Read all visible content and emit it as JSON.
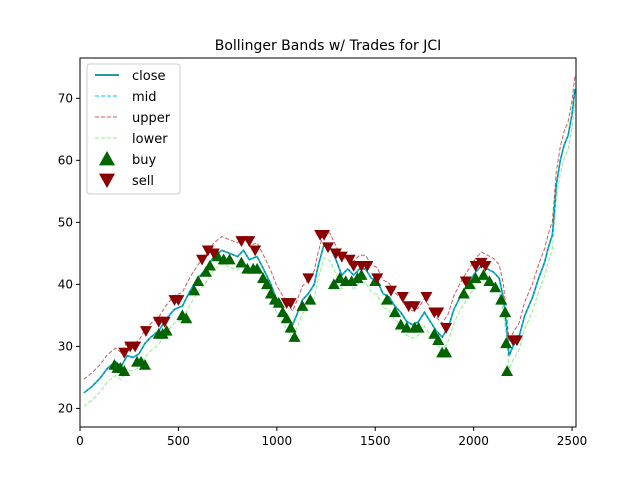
{
  "chart_data": {
    "type": "line",
    "title": "Bollinger Bands w/ Trades for JCI",
    "xlabel": "",
    "ylabel": "",
    "xlim": [
      0,
      2520
    ],
    "ylim": [
      17,
      76.5
    ],
    "xticks": [
      0,
      500,
      1000,
      1500,
      2000,
      2500
    ],
    "yticks": [
      20,
      30,
      40,
      50,
      60,
      70
    ],
    "grid": false,
    "legend": "top-left",
    "legend_entries": [
      "close",
      "mid",
      "upper",
      "lower",
      "buy",
      "sell"
    ],
    "colors": {
      "close": "#008b8b",
      "mid": "#00bfff",
      "upper": "#cd5c5c",
      "lower": "#90ee90",
      "buy": "#006400",
      "sell": "#8b0000"
    },
    "series": [
      {
        "name": "close",
        "points": [
          [
            20,
            22.5
          ],
          [
            60,
            23.5
          ],
          [
            100,
            24.8
          ],
          [
            140,
            26.5
          ],
          [
            180,
            27.5
          ],
          [
            210,
            26.8
          ],
          [
            240,
            28.5
          ],
          [
            270,
            28.2
          ],
          [
            300,
            28.8
          ],
          [
            330,
            30.5
          ],
          [
            360,
            31.5
          ],
          [
            400,
            32.5
          ],
          [
            440,
            34.5
          ],
          [
            480,
            36.0
          ],
          [
            520,
            36.5
          ],
          [
            560,
            39.0
          ],
          [
            600,
            41.0
          ],
          [
            640,
            42.5
          ],
          [
            680,
            44.5
          ],
          [
            720,
            45.5
          ],
          [
            760,
            45.0
          ],
          [
            800,
            44.5
          ],
          [
            830,
            45.5
          ],
          [
            860,
            44.0
          ],
          [
            900,
            44.5
          ],
          [
            940,
            42.0
          ],
          [
            970,
            40.0
          ],
          [
            1000,
            37.5
          ],
          [
            1030,
            36.0
          ],
          [
            1060,
            34.5
          ],
          [
            1080,
            33.5
          ],
          [
            1100,
            35.0
          ],
          [
            1130,
            37.5
          ],
          [
            1160,
            38.5
          ],
          [
            1190,
            40.0
          ],
          [
            1210,
            43.0
          ],
          [
            1240,
            46.5
          ],
          [
            1270,
            46.0
          ],
          [
            1300,
            44.0
          ],
          [
            1330,
            41.5
          ],
          [
            1360,
            42.5
          ],
          [
            1390,
            41.5
          ],
          [
            1420,
            42.5
          ],
          [
            1450,
            42.5
          ],
          [
            1480,
            41.0
          ],
          [
            1510,
            40.5
          ],
          [
            1540,
            38.5
          ],
          [
            1570,
            38.0
          ],
          [
            1600,
            36.5
          ],
          [
            1630,
            35.5
          ],
          [
            1660,
            34.0
          ],
          [
            1690,
            33.5
          ],
          [
            1720,
            34.0
          ],
          [
            1750,
            35.5
          ],
          [
            1780,
            34.0
          ],
          [
            1810,
            32.5
          ],
          [
            1840,
            31.5
          ],
          [
            1870,
            33.0
          ],
          [
            1900,
            36.0
          ],
          [
            1940,
            38.5
          ],
          [
            1980,
            40.5
          ],
          [
            2010,
            42.0
          ],
          [
            2040,
            43.0
          ],
          [
            2070,
            42.5
          ],
          [
            2100,
            42.0
          ],
          [
            2130,
            41.0
          ],
          [
            2150,
            38.0
          ],
          [
            2165,
            34.0
          ],
          [
            2180,
            28.5
          ],
          [
            2200,
            30.0
          ],
          [
            2230,
            31.5
          ],
          [
            2260,
            35.0
          ],
          [
            2300,
            38.0
          ],
          [
            2330,
            41.0
          ],
          [
            2360,
            43.5
          ],
          [
            2380,
            46.0
          ],
          [
            2400,
            48.0
          ],
          [
            2420,
            56.0
          ],
          [
            2440,
            60.0
          ],
          [
            2460,
            62.5
          ],
          [
            2480,
            64.0
          ],
          [
            2500,
            67.5
          ],
          [
            2515,
            71.5
          ]
        ]
      },
      {
        "name": "mid",
        "offset": 0
      },
      {
        "name": "upper",
        "offset": 2.2
      },
      {
        "name": "lower",
        "offset": -2.2
      },
      {
        "name": "buy",
        "points": [
          [
            175,
            27.0
          ],
          [
            190,
            26.5
          ],
          [
            205,
            26.5
          ],
          [
            225,
            26.0
          ],
          [
            290,
            27.5
          ],
          [
            310,
            27.5
          ],
          [
            330,
            27.0
          ],
          [
            400,
            32.0
          ],
          [
            420,
            32.0
          ],
          [
            440,
            32.5
          ],
          [
            520,
            35.0
          ],
          [
            540,
            34.5
          ],
          [
            580,
            39.0
          ],
          [
            600,
            40.5
          ],
          [
            640,
            42.0
          ],
          [
            660,
            43.0
          ],
          [
            700,
            44.5
          ],
          [
            730,
            44.0
          ],
          [
            760,
            44.0
          ],
          [
            820,
            43.5
          ],
          [
            850,
            42.5
          ],
          [
            880,
            42.5
          ],
          [
            900,
            42.5
          ],
          [
            930,
            41.0
          ],
          [
            950,
            40.0
          ],
          [
            970,
            38.5
          ],
          [
            990,
            37.5
          ],
          [
            1010,
            37.0
          ],
          [
            1030,
            35.5
          ],
          [
            1050,
            34.5
          ],
          [
            1070,
            33.0
          ],
          [
            1090,
            31.5
          ],
          [
            1130,
            36.5
          ],
          [
            1170,
            37.5
          ],
          [
            1290,
            40.0
          ],
          [
            1320,
            41.0
          ],
          [
            1350,
            40.5
          ],
          [
            1380,
            40.5
          ],
          [
            1410,
            41.0
          ],
          [
            1430,
            41.5
          ],
          [
            1500,
            40.5
          ],
          [
            1560,
            37.5
          ],
          [
            1600,
            35.5
          ],
          [
            1630,
            33.5
          ],
          [
            1660,
            33.0
          ],
          [
            1700,
            33.0
          ],
          [
            1720,
            33.0
          ],
          [
            1800,
            32.0
          ],
          [
            1820,
            31.0
          ],
          [
            1840,
            29.0
          ],
          [
            1860,
            29.0
          ],
          [
            1950,
            38.5
          ],
          [
            1980,
            40.0
          ],
          [
            2010,
            41.0
          ],
          [
            2050,
            41.5
          ],
          [
            2080,
            40.5
          ],
          [
            2110,
            39.5
          ],
          [
            2140,
            37.5
          ],
          [
            2160,
            35.5
          ],
          [
            2165,
            30.5
          ],
          [
            2170,
            26.0
          ]
        ]
      },
      {
        "name": "sell",
        "points": [
          [
            225,
            29.0
          ],
          [
            255,
            30.0
          ],
          [
            280,
            30.0
          ],
          [
            335,
            32.5
          ],
          [
            400,
            34.0
          ],
          [
            430,
            34.0
          ],
          [
            480,
            37.5
          ],
          [
            500,
            37.5
          ],
          [
            620,
            44.0
          ],
          [
            650,
            45.5
          ],
          [
            680,
            45.0
          ],
          [
            820,
            47.0
          ],
          [
            860,
            47.0
          ],
          [
            890,
            45.5
          ],
          [
            1050,
            37.0
          ],
          [
            1070,
            37.0
          ],
          [
            1160,
            41.0
          ],
          [
            1220,
            48.0
          ],
          [
            1240,
            48.0
          ],
          [
            1260,
            46.0
          ],
          [
            1300,
            45.0
          ],
          [
            1330,
            44.5
          ],
          [
            1370,
            44.0
          ],
          [
            1390,
            43.0
          ],
          [
            1430,
            43.0
          ],
          [
            1460,
            43.0
          ],
          [
            1510,
            41.0
          ],
          [
            1580,
            39.0
          ],
          [
            1640,
            38.0
          ],
          [
            1670,
            36.5
          ],
          [
            1700,
            36.5
          ],
          [
            1760,
            38.0
          ],
          [
            1800,
            35.5
          ],
          [
            1820,
            35.5
          ],
          [
            1860,
            33.0
          ],
          [
            1960,
            40.5
          ],
          [
            2010,
            43.0
          ],
          [
            2040,
            43.5
          ],
          [
            2060,
            43.0
          ],
          [
            2200,
            31.0
          ],
          [
            2220,
            31.0
          ]
        ]
      }
    ]
  }
}
